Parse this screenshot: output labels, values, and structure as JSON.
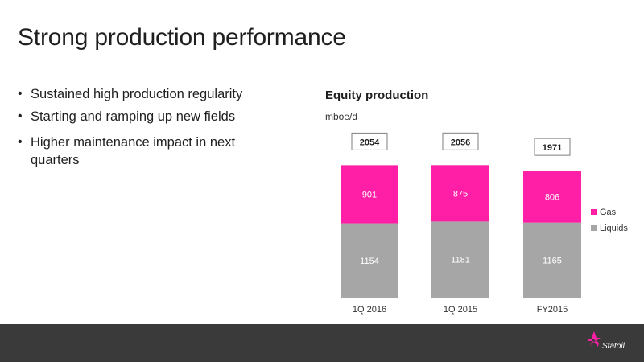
{
  "slide": {
    "title": "Strong production performance",
    "bullets": [
      "Sustained high production regularity",
      "Starting and ramping up new fields",
      "Higher maintenance impact in next quarters"
    ]
  },
  "chart_data": {
    "type": "bar",
    "stacked": true,
    "title": "Equity production",
    "unit": "mboe/d",
    "categories": [
      "1Q 2016",
      "1Q 2015",
      "FY2015"
    ],
    "series": [
      {
        "name": "Liquids",
        "values": [
          1154,
          1181,
          1165
        ],
        "color": "#a6a6a6"
      },
      {
        "name": "Gas",
        "values": [
          901,
          875,
          806
        ],
        "color": "#ff1fa6"
      }
    ],
    "totals": [
      2054,
      2056,
      1971
    ],
    "legend": "right",
    "grid": false
  },
  "footer": {
    "brand": "Statoil",
    "logo_icon": "statoil-star-icon",
    "background": "#3a3a3a"
  }
}
